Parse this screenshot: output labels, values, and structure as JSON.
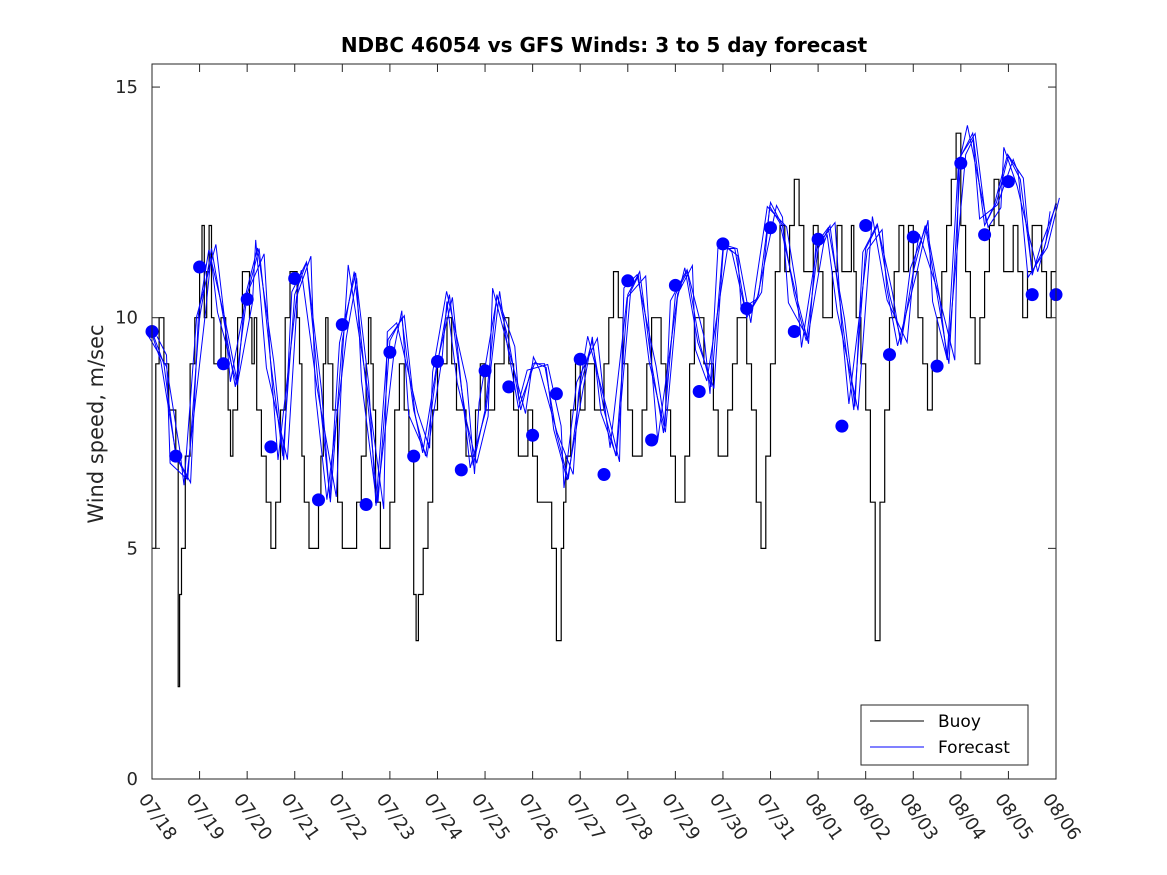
{
  "chart_data": {
    "type": "line",
    "title": "NDBC 46054 vs GFS Winds: 3 to 5 day forecast",
    "xlabel": "",
    "ylabel": "Wind speed, m/sec",
    "xlim": [
      "07/18",
      "08/06"
    ],
    "ylim": [
      0,
      15.5
    ],
    "yticks": [
      0,
      5,
      10,
      15
    ],
    "xticks": [
      "07/18",
      "07/19",
      "07/20",
      "07/21",
      "07/22",
      "07/23",
      "07/24",
      "07/25",
      "07/26",
      "07/27",
      "07/28",
      "07/29",
      "07/30",
      "07/31",
      "08/01",
      "08/02",
      "08/03",
      "08/04",
      "08/05",
      "08/06"
    ],
    "grid": false,
    "legend_position": "bottom-right",
    "colors": {
      "buoy": "#000000",
      "forecast": "#0000ff"
    },
    "series": [
      {
        "name": "Buoy",
        "x_day": [
          0.0,
          0.08,
          0.15,
          0.25,
          0.35,
          0.45,
          0.5,
          0.55,
          0.58,
          0.62,
          0.7,
          0.8,
          0.9,
          1.0,
          1.05,
          1.1,
          1.15,
          1.2,
          1.25,
          1.3,
          1.35,
          1.45,
          1.55,
          1.6,
          1.65,
          1.7,
          1.8,
          1.9,
          2.0,
          2.05,
          2.1,
          2.15,
          2.2,
          2.3,
          2.4,
          2.5,
          2.55,
          2.6,
          2.7,
          2.8,
          2.9,
          3.0,
          3.05,
          3.1,
          3.15,
          3.2,
          3.3,
          3.4,
          3.5,
          3.55,
          3.6,
          3.65,
          3.7,
          3.8,
          3.9,
          4.0,
          4.1,
          4.2,
          4.3,
          4.4,
          4.5,
          4.55,
          4.6,
          4.65,
          4.7,
          4.8,
          4.9,
          5.0,
          5.1,
          5.2,
          5.3,
          5.4,
          5.5,
          5.55,
          5.6,
          5.7,
          5.8,
          5.9,
          6.0,
          6.1,
          6.2,
          6.3,
          6.4,
          6.5,
          6.6,
          6.7,
          6.8,
          6.9,
          7.0,
          7.1,
          7.2,
          7.3,
          7.4,
          7.5,
          7.6,
          7.7,
          7.8,
          7.9,
          8.0,
          8.1,
          8.2,
          8.3,
          8.4,
          8.5,
          8.6,
          8.65,
          8.7,
          8.8,
          8.9,
          9.0,
          9.1,
          9.2,
          9.3,
          9.4,
          9.5,
          9.6,
          9.7,
          9.8,
          9.9,
          10.0,
          10.1,
          10.2,
          10.3,
          10.4,
          10.5,
          10.6,
          10.7,
          10.8,
          10.9,
          11.0,
          11.1,
          11.2,
          11.3,
          11.4,
          11.5,
          11.6,
          11.7,
          11.8,
          11.9,
          12.0,
          12.1,
          12.2,
          12.3,
          12.4,
          12.5,
          12.6,
          12.7,
          12.8,
          12.9,
          13.0,
          13.1,
          13.2,
          13.3,
          13.4,
          13.5,
          13.6,
          13.7,
          13.8,
          13.9,
          14.0,
          14.1,
          14.2,
          14.3,
          14.4,
          14.5,
          14.6,
          14.7,
          14.75,
          14.8,
          14.9,
          15.0,
          15.1,
          15.2,
          15.3,
          15.4,
          15.5,
          15.6,
          15.7,
          15.8,
          15.9,
          16.0,
          16.1,
          16.2,
          16.3,
          16.4,
          16.5,
          16.6,
          16.7,
          16.8,
          16.9,
          17.0,
          17.1,
          17.2,
          17.3,
          17.4,
          17.5,
          17.6,
          17.7,
          17.8,
          17.9,
          18.0,
          18.1,
          18.2,
          18.3,
          18.4,
          18.5,
          18.6,
          18.7,
          18.8,
          18.9,
          19.0
        ],
        "values": [
          5,
          9,
          10,
          9,
          8,
          8,
          7,
          2,
          4,
          5,
          7,
          9,
          10,
          11,
          12,
          10,
          11,
          12,
          10,
          9,
          9,
          10,
          9,
          8,
          7,
          8,
          10,
          11,
          11,
          10,
          9,
          10,
          8,
          7,
          6,
          5,
          5,
          6,
          8,
          10,
          11,
          11,
          10,
          9,
          7,
          6,
          5,
          5,
          6,
          7,
          9,
          10,
          9,
          8,
          6,
          5,
          5,
          5,
          6,
          7,
          9,
          10,
          9,
          8,
          6,
          5,
          5,
          6,
          8,
          9,
          8,
          7,
          4,
          3,
          4,
          5,
          6,
          8,
          9,
          9,
          10,
          9,
          8,
          8,
          7,
          7,
          8,
          9,
          8,
          8,
          9,
          9,
          10,
          9,
          8,
          7,
          7,
          8,
          7,
          6,
          6,
          6,
          5,
          3,
          5,
          6,
          7,
          8,
          9,
          8,
          9,
          9,
          8,
          8,
          9,
          10,
          11,
          10,
          9,
          8,
          7,
          7,
          8,
          9,
          10,
          10,
          9,
          8,
          7,
          6,
          6,
          7,
          9,
          10,
          10,
          9,
          9,
          8,
          7,
          7,
          8,
          9,
          10,
          10,
          9,
          8,
          6,
          5,
          7,
          9,
          11,
          12,
          11,
          12,
          13,
          12,
          11,
          11,
          12,
          11,
          10,
          10,
          11,
          12,
          11,
          11,
          12,
          11,
          10,
          9,
          8,
          6,
          3,
          6,
          8,
          10,
          11,
          12,
          11,
          12,
          11,
          10,
          9,
          8,
          9,
          10,
          11,
          12,
          13,
          14,
          12,
          11,
          10,
          9,
          10,
          11,
          12,
          13,
          12,
          11,
          11,
          12,
          11,
          10,
          11,
          12,
          12,
          11,
          10,
          11,
          11
        ]
      },
      {
        "name": "Forecast",
        "x_day": [
          0,
          0.25,
          0.5,
          0.75,
          1.0,
          1.25,
          1.5,
          1.75,
          2.0,
          2.25,
          2.5,
          2.75,
          3.0,
          3.25,
          3.5,
          3.75,
          4.0,
          4.25,
          4.5,
          4.75,
          5.0,
          5.25,
          5.5,
          5.75,
          6.0,
          6.25,
          6.5,
          6.75,
          7.0,
          7.25,
          7.5,
          7.75,
          8.0,
          8.25,
          8.5,
          8.75,
          9.0,
          9.25,
          9.5,
          9.75,
          10.0,
          10.25,
          10.5,
          10.75,
          11.0,
          11.25,
          11.5,
          11.75,
          12.0,
          12.25,
          12.5,
          12.75,
          13.0,
          13.25,
          13.5,
          13.75,
          14.0,
          14.25,
          14.5,
          14.75,
          15.0,
          15.25,
          15.5,
          15.75,
          16.0,
          16.25,
          16.5,
          16.75,
          17.0,
          17.25,
          17.5,
          17.75,
          18.0,
          18.25,
          18.5,
          18.75,
          19.0
        ],
        "values": [
          9.7,
          9.0,
          7.0,
          6.5,
          10.0,
          11.5,
          10.0,
          8.5,
          10.5,
          11.5,
          9.0,
          7.0,
          10.5,
          11.2,
          8.5,
          6.0,
          9.5,
          11.0,
          8.5,
          6.0,
          9.5,
          10.0,
          8.0,
          7.0,
          9.0,
          10.5,
          8.5,
          6.8,
          8.0,
          10.5,
          9.5,
          8.0,
          9.0,
          9.0,
          7.5,
          6.5,
          8.5,
          9.5,
          8.0,
          7.0,
          10.5,
          11.0,
          9.0,
          7.5,
          10.5,
          11.0,
          9.5,
          8.5,
          11.5,
          11.5,
          10.0,
          10.5,
          12.5,
          12.0,
          10.5,
          9.5,
          11.5,
          12.0,
          10.0,
          8.0,
          11.5,
          12.0,
          10.5,
          9.5,
          11.0,
          12.0,
          10.5,
          9.0,
          13.5,
          14.0,
          12.0,
          12.5,
          13.5,
          13.0,
          11.0,
          11.5,
          12.5
        ]
      },
      {
        "name": "",
        "x_day": [
          0.0,
          0.5,
          1.0,
          1.5,
          2.0,
          2.5,
          3.0,
          3.5,
          4.0,
          4.5,
          5.0,
          5.5,
          6.0,
          6.5,
          7.0,
          7.5,
          8.0,
          8.5,
          9.0,
          9.5,
          10.0,
          10.5,
          11.0,
          11.5,
          12.0,
          12.5,
          13.0,
          13.5,
          14.0,
          14.5,
          15.0,
          15.5,
          16.0,
          16.5,
          17.0,
          17.5,
          18.0,
          18.5,
          19.0
        ],
        "values": [
          9.7,
          7.0,
          11.1,
          9.0,
          10.4,
          7.2,
          10.85,
          6.05,
          9.85,
          5.95,
          9.25,
          7.0,
          9.05,
          6.7,
          8.85,
          8.5,
          7.45,
          8.35,
          9.1,
          6.6,
          10.8,
          7.35,
          10.7,
          8.4,
          11.6,
          10.2,
          11.95,
          9.7,
          11.7,
          7.65,
          12.0,
          9.2,
          11.75,
          8.95,
          13.35,
          11.8,
          12.95,
          10.5,
          10.5
        ]
      }
    ],
    "legend": [
      "Buoy",
      "Forecast"
    ]
  }
}
